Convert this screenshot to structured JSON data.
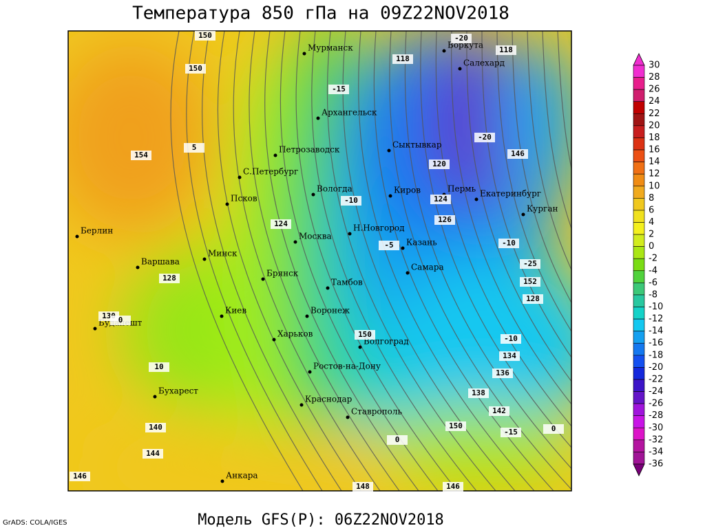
{
  "title": "Температура 850 гПа на 09Z22NOV2018",
  "footer": "Модель GFS(P): 06Z22NOV2018",
  "credit": "GrADS: COLA/IGES",
  "cities": [
    "Мурманск",
    "Воркута",
    "Салехард",
    "Архангельск",
    "Петрозаводск",
    "Сыктывкар",
    "С.Петербург",
    "Вологда",
    "Киров",
    "Пермь",
    "Екатеринбург",
    "Курган",
    "Псков",
    "Берлин",
    "Н.Новгород",
    "Москва",
    "Казань",
    "Минск",
    "Варшава",
    "Самара",
    "Брянск",
    "Тамбов",
    "Киев",
    "Воронеж",
    "Будапешт",
    "Харьков",
    "Волгоград",
    "Ростов-на-Дону",
    "Бухарест",
    "Краснодар",
    "Ставрополь",
    "Анкара"
  ],
  "contour_labels": [
    "150",
    "-20",
    "118",
    "118",
    "-15",
    "154",
    "120",
    "-20",
    "146",
    "124",
    "126",
    "-10",
    "124",
    "-5",
    "-10",
    "-25",
    "128",
    "152",
    "128",
    "130",
    "150",
    "-10",
    "134",
    "136",
    "138",
    "140",
    "150",
    "142",
    "-15",
    "144",
    "148",
    "146",
    "146",
    "150",
    "5",
    "0",
    "0",
    "10",
    "0"
  ],
  "colorbar": {
    "levels": [
      30,
      28,
      26,
      24,
      22,
      20,
      18,
      16,
      14,
      12,
      10,
      8,
      6,
      4,
      2,
      0,
      -2,
      -4,
      -6,
      -8,
      -10,
      -12,
      -14,
      -16,
      -18,
      -20,
      -22,
      -24,
      -26,
      -28,
      -30,
      -32,
      -34,
      -36
    ],
    "colors": [
      "#f02ed0",
      "#e81e8c",
      "#d01e6e",
      "#c00000",
      "#a01414",
      "#c81e1e",
      "#dc3214",
      "#ec5014",
      "#f07014",
      "#f08c14",
      "#f0aa1e",
      "#f0c81e",
      "#f0e11e",
      "#f4f01e",
      "#d2ec1e",
      "#aae614",
      "#7adc14",
      "#50d23c",
      "#3cc878",
      "#28c8a0",
      "#14d2c8",
      "#14c8f0",
      "#14a0f0",
      "#1478f0",
      "#1450f0",
      "#1428dc",
      "#3c14c8",
      "#6414c8",
      "#a014dc",
      "#c814e6",
      "#dc14c8",
      "#b414a0",
      "#a01496",
      "#780078"
    ]
  }
}
